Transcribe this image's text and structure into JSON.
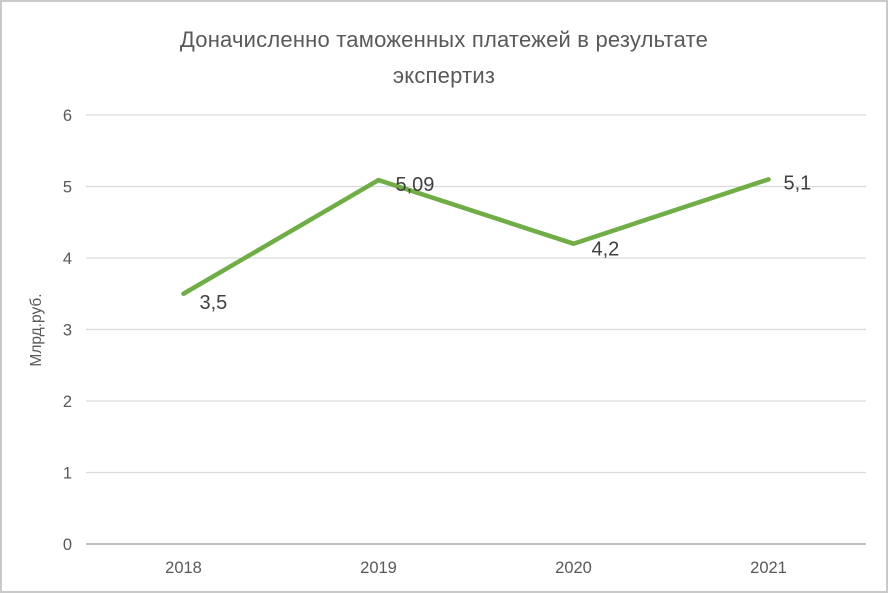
{
  "header": {
    "title_lines": [
      "Доначисленно таможенных платежей в результате",
      "экспертиз"
    ]
  },
  "chart_data": {
    "type": "line",
    "title": "Доначисленно таможенных платежей в результате экспертиз",
    "categories": [
      "2018",
      "2019",
      "2020",
      "2021"
    ],
    "values": [
      3.5,
      5.09,
      4.2,
      5.1
    ],
    "data_labels": [
      "3,5",
      "5,09",
      "4,2",
      "5,1"
    ],
    "series_name": "Доначисленно таможенных платежей в результате экспертиз",
    "xlabel": "",
    "ylabel": "Млрд.руб.",
    "ylim": [
      0,
      6
    ],
    "yticks": [
      0,
      1,
      2,
      3,
      4,
      5,
      6
    ],
    "grid": true,
    "legend": "none",
    "colors": {
      "line": "#70AD47",
      "gridline": "#D9D9D9",
      "axis_line": "#BFBFBF",
      "title": "#595959",
      "ticks": "#595959",
      "data_labels": "#404040"
    }
  }
}
